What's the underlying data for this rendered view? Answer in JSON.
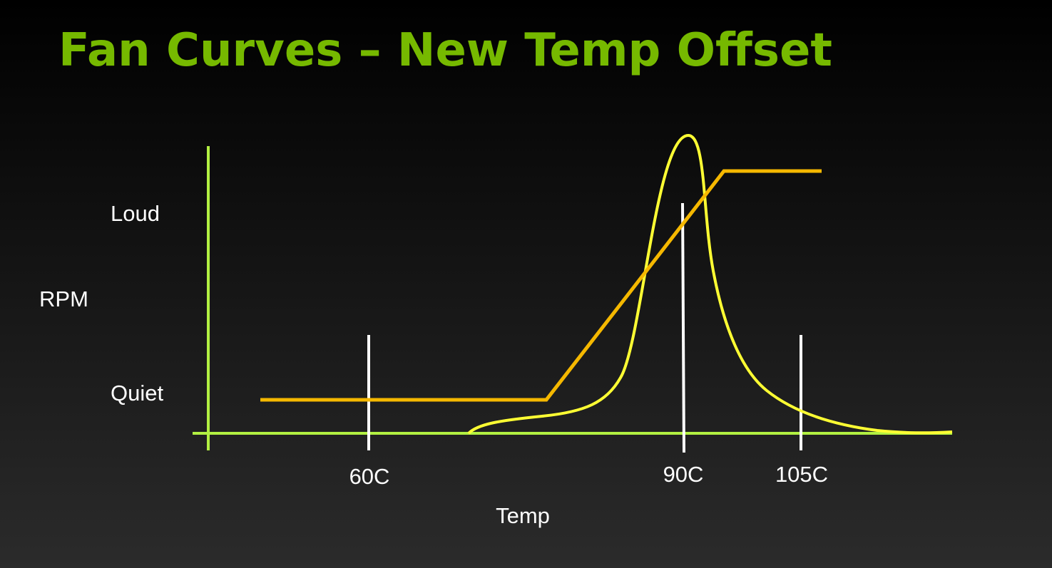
{
  "title": "Fan Curves – New Temp Offset",
  "y_axis": {
    "label": "RPM",
    "levels": [
      "Loud",
      "Quiet"
    ]
  },
  "x_axis": {
    "label": "Temp",
    "ticks": [
      "60C",
      "90C",
      "105C"
    ]
  }
}
